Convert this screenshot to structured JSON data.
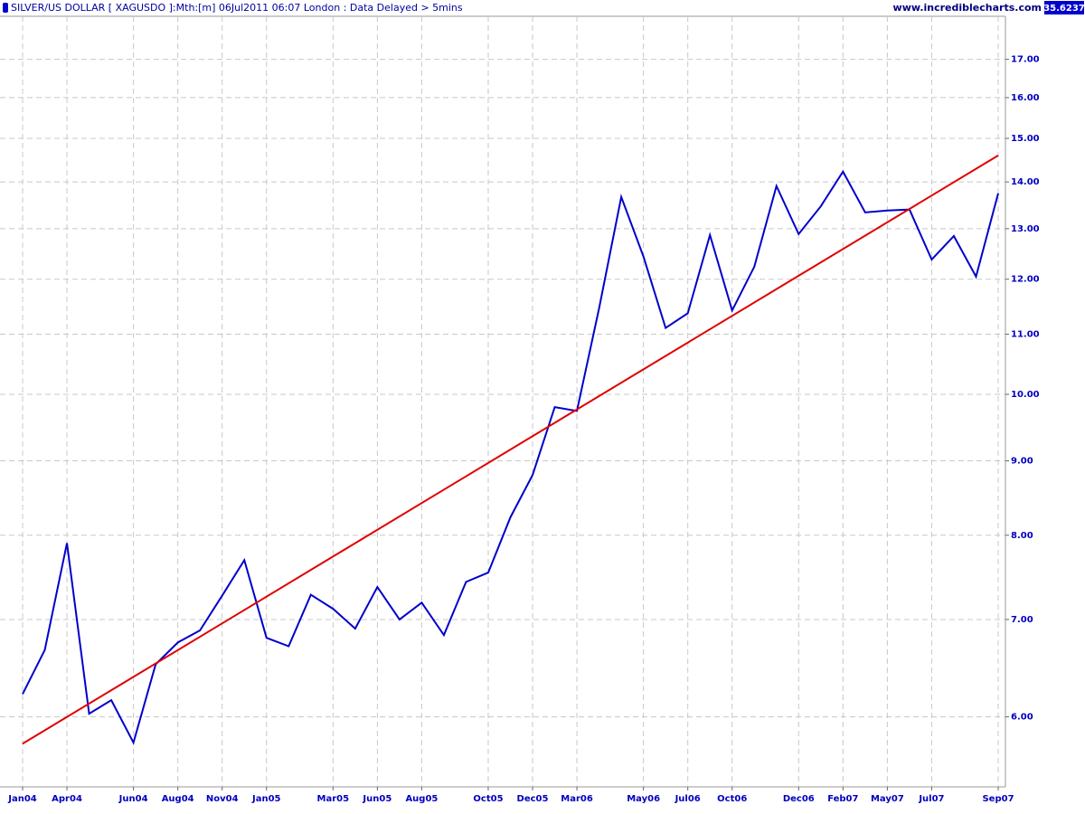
{
  "chart_data": {
    "type": "line",
    "title": "SILVER/US DOLLAR [ XAGUSDO ]:Mth:[m]  06Jul2011 06:07 London : Data Delayed > 5mins",
    "site": "www.incrediblecharts.com",
    "last_value": "35.6237",
    "categories": [
      "Jan04",
      null,
      "Apr04",
      null,
      null,
      "Jun04",
      null,
      "Aug04",
      null,
      "Nov04",
      null,
      "Jan05",
      null,
      null,
      "Mar05",
      null,
      "Jun05",
      null,
      "Aug05",
      null,
      null,
      "Oct05",
      null,
      "Dec05",
      null,
      "Mar06",
      null,
      null,
      "May06",
      null,
      "Jul06",
      null,
      "Oct06",
      null,
      null,
      "Dec06",
      null,
      "Feb07",
      null,
      "May07",
      null,
      "Jul07",
      null,
      null,
      "Sep07"
    ],
    "series": [
      {
        "color": "#0000cc",
        "values": [
          6.22,
          6.67,
          7.9,
          6.03,
          6.16,
          5.76,
          6.52,
          6.75,
          6.88,
          7.27,
          7.69,
          6.8,
          6.71,
          7.28,
          7.12,
          6.9,
          7.37,
          7.0,
          7.19,
          6.83,
          7.43,
          7.54,
          8.23,
          8.8,
          9.8,
          9.74,
          11.46,
          13.67,
          12.44,
          11.11,
          11.37,
          12.87,
          11.42,
          12.24,
          13.91,
          12.89,
          13.47,
          14.23,
          13.34,
          13.38,
          13.4,
          12.38,
          12.85,
          12.05,
          13.75
        ]
      }
    ],
    "trendline": {
      "color": "#e00000",
      "values": [
        5.75,
        14.6
      ]
    },
    "log_scale": true,
    "grid": true,
    "ylim": [
      5.37,
      18.2
    ],
    "yticks": [
      {
        "value": 6,
        "label": "6.00"
      },
      {
        "value": 7,
        "label": "7.00"
      },
      {
        "value": 8,
        "label": "8.00"
      },
      {
        "value": 9,
        "label": "9.00"
      },
      {
        "value": 10,
        "label": "10.00"
      },
      {
        "value": 11,
        "label": "11.00"
      },
      {
        "value": 12,
        "label": "12.00"
      },
      {
        "value": 13,
        "label": "13.00"
      },
      {
        "value": 14,
        "label": "14.00"
      },
      {
        "value": 15,
        "label": "15.00"
      },
      {
        "value": 16,
        "label": "16.00"
      },
      {
        "value": 17,
        "label": "17.00"
      }
    ]
  }
}
